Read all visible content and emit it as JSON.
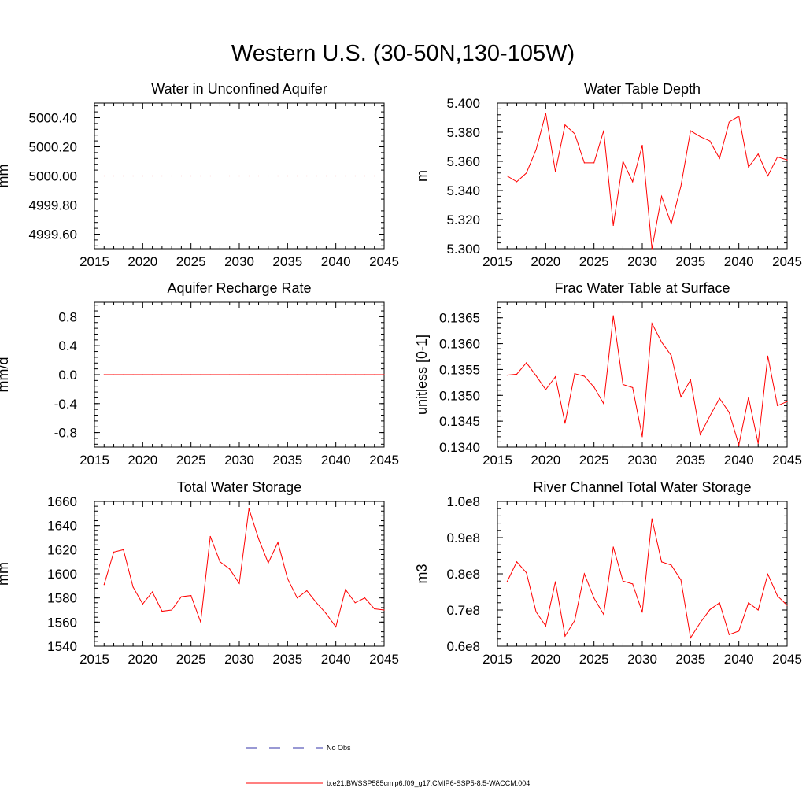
{
  "figure": {
    "title": "Western U.S. (30-50N,130-105W)"
  },
  "legend": [
    {
      "label": "No Obs",
      "color": "#3333aa",
      "style": "dashed"
    },
    {
      "label": "b.e21.BWSSP585cmip6.f09_g17.CMIP6-SSP5-8.5-WACCM.004",
      "color": "#ff0000",
      "style": "solid"
    }
  ],
  "chart_data": [
    {
      "type": "line",
      "title": "Water in Unconfined Aquifer",
      "xlabel": "",
      "ylabel": "mm",
      "xlim": [
        2015,
        2045
      ],
      "ylim": [
        4999.5,
        5000.5
      ],
      "xticks": [
        "2015",
        "2020",
        "2025",
        "2030",
        "2035",
        "2040",
        "2045"
      ],
      "yticks": [
        "4999.60",
        "4999.80",
        "5000.00",
        "5000.20",
        "5000.40"
      ],
      "ytick_values": [
        4999.6,
        4999.8,
        5000.0,
        5000.2,
        5000.4
      ],
      "series": [
        {
          "color": "#ff0000",
          "x": [
            2016,
            2017,
            2018,
            2019,
            2020,
            2021,
            2022,
            2023,
            2024,
            2025,
            2026,
            2027,
            2028,
            2029,
            2030,
            2031,
            2032,
            2033,
            2034,
            2035,
            2036,
            2037,
            2038,
            2039,
            2040,
            2041,
            2042,
            2043,
            2044,
            2045
          ],
          "y": [
            5000,
            5000,
            5000,
            5000,
            5000,
            5000,
            5000,
            5000,
            5000,
            5000,
            5000,
            5000,
            5000,
            5000,
            5000,
            5000,
            5000,
            5000,
            5000,
            5000,
            5000,
            5000,
            5000,
            5000,
            5000,
            5000,
            5000,
            5000,
            5000,
            5000
          ]
        }
      ]
    },
    {
      "type": "line",
      "title": "Water Table Depth",
      "xlabel": "",
      "ylabel": "m",
      "xlim": [
        2015,
        2045
      ],
      "ylim": [
        5.3,
        5.4
      ],
      "xticks": [
        "2015",
        "2020",
        "2025",
        "2030",
        "2035",
        "2040",
        "2045"
      ],
      "yticks": [
        "5.300",
        "5.320",
        "5.340",
        "5.360",
        "5.380",
        "5.400"
      ],
      "ytick_values": [
        5.3,
        5.32,
        5.34,
        5.36,
        5.38,
        5.4
      ],
      "series": [
        {
          "color": "#ff0000",
          "x": [
            2016,
            2017,
            2018,
            2019,
            2020,
            2021,
            2022,
            2023,
            2024,
            2025,
            2026,
            2027,
            2028,
            2029,
            2030,
            2031,
            2032,
            2033,
            2034,
            2035,
            2036,
            2037,
            2038,
            2039,
            2040,
            2041,
            2042,
            2043,
            2044,
            2045
          ],
          "y": [
            5.35,
            5.346,
            5.352,
            5.368,
            5.393,
            5.353,
            5.385,
            5.379,
            5.359,
            5.359,
            5.381,
            5.316,
            5.36,
            5.346,
            5.371,
            5.3,
            5.336,
            5.317,
            5.343,
            5.381,
            5.377,
            5.374,
            5.362,
            5.387,
            5.391,
            5.356,
            5.365,
            5.35,
            5.363,
            5.361
          ]
        }
      ]
    },
    {
      "type": "line",
      "title": "Aquifer Recharge Rate",
      "xlabel": "",
      "ylabel": "mm/d",
      "xlim": [
        2015,
        2045
      ],
      "ylim": [
        -1.0,
        1.0
      ],
      "xticks": [
        "2015",
        "2020",
        "2025",
        "2030",
        "2035",
        "2040",
        "2045"
      ],
      "yticks": [
        "-0.8",
        "-0.4",
        "0.0",
        "0.4",
        "0.8"
      ],
      "ytick_values": [
        -0.8,
        -0.4,
        0.0,
        0.4,
        0.8
      ],
      "series": [
        {
          "color": "#ff0000",
          "x": [
            2016,
            2017,
            2018,
            2019,
            2020,
            2021,
            2022,
            2023,
            2024,
            2025,
            2026,
            2027,
            2028,
            2029,
            2030,
            2031,
            2032,
            2033,
            2034,
            2035,
            2036,
            2037,
            2038,
            2039,
            2040,
            2041,
            2042,
            2043,
            2044,
            2045
          ],
          "y": [
            0,
            0,
            0,
            0,
            0,
            0,
            0,
            0,
            0,
            0,
            0,
            0,
            0,
            0,
            0,
            0,
            0,
            0,
            0,
            0,
            0,
            0,
            0,
            0,
            0,
            0,
            0,
            0,
            0,
            0
          ]
        }
      ]
    },
    {
      "type": "line",
      "title": "Frac Water Table at Surface",
      "xlabel": "",
      "ylabel": "unitless [0-1]",
      "xlim": [
        2015,
        2045
      ],
      "ylim": [
        0.134,
        0.1368
      ],
      "xticks": [
        "2015",
        "2020",
        "2025",
        "2030",
        "2035",
        "2040",
        "2045"
      ],
      "yticks": [
        "0.1340",
        "0.1345",
        "0.1350",
        "0.1355",
        "0.1360",
        "0.1365"
      ],
      "ytick_values": [
        0.134,
        0.1345,
        0.135,
        0.1355,
        0.136,
        0.1365
      ],
      "series": [
        {
          "color": "#ff0000",
          "x": [
            2016,
            2017,
            2018,
            2019,
            2020,
            2021,
            2022,
            2023,
            2024,
            2025,
            2026,
            2027,
            2028,
            2029,
            2030,
            2031,
            2032,
            2033,
            2034,
            2035,
            2036,
            2037,
            2038,
            2039,
            2040,
            2041,
            2042,
            2043,
            2044,
            2045
          ],
          "y": [
            0.13539,
            0.13541,
            0.13563,
            0.13538,
            0.13511,
            0.13536,
            0.13446,
            0.13542,
            0.13537,
            0.13516,
            0.13484,
            0.13654,
            0.13521,
            0.13515,
            0.1342,
            0.13639,
            0.13603,
            0.13577,
            0.13497,
            0.1353,
            0.13424,
            0.1346,
            0.13494,
            0.13467,
            0.13404,
            0.13496,
            0.13407,
            0.13576,
            0.1348,
            0.13488
          ]
        }
      ]
    },
    {
      "type": "line",
      "title": "Total Water Storage",
      "xlabel": "",
      "ylabel": "mm",
      "xlim": [
        2015,
        2045
      ],
      "ylim": [
        1540,
        1660
      ],
      "xticks": [
        "2015",
        "2020",
        "2025",
        "2030",
        "2035",
        "2040",
        "2045"
      ],
      "yticks": [
        "1540",
        "1560",
        "1580",
        "1600",
        "1620",
        "1640",
        "1660"
      ],
      "ytick_values": [
        1540,
        1560,
        1580,
        1600,
        1620,
        1640,
        1660
      ],
      "series": [
        {
          "color": "#ff0000",
          "x": [
            2016,
            2017,
            2018,
            2019,
            2020,
            2021,
            2022,
            2023,
            2024,
            2025,
            2026,
            2027,
            2028,
            2029,
            2030,
            2031,
            2032,
            2033,
            2034,
            2035,
            2036,
            2037,
            2038,
            2039,
            2040,
            2041,
            2042,
            2043,
            2044,
            2045
          ],
          "y": [
            1591,
            1618,
            1620,
            1589,
            1575,
            1585,
            1569,
            1570,
            1581,
            1582,
            1560,
            1631,
            1610,
            1604,
            1592,
            1654,
            1629,
            1609,
            1626,
            1596,
            1580,
            1586,
            1576,
            1567,
            1556,
            1587,
            1576,
            1580,
            1571,
            1570
          ]
        }
      ]
    },
    {
      "type": "line",
      "title": "River Channel Total Water Storage",
      "xlabel": "",
      "ylabel": "m3",
      "xlim": [
        2015,
        2045
      ],
      "ylim": [
        60000000.0,
        100000000.0
      ],
      "xticks": [
        "2015",
        "2020",
        "2025",
        "2030",
        "2035",
        "2040",
        "2045"
      ],
      "yticks": [
        "0.6e8",
        "0.7e8",
        "0.8e8",
        "0.9e8",
        "1.0e8"
      ],
      "ytick_values": [
        60000000,
        70000000,
        80000000,
        90000000,
        100000000
      ],
      "series": [
        {
          "color": "#ff0000",
          "x": [
            2016,
            2017,
            2018,
            2019,
            2020,
            2021,
            2022,
            2023,
            2024,
            2025,
            2026,
            2027,
            2028,
            2029,
            2030,
            2031,
            2032,
            2033,
            2034,
            2035,
            2036,
            2037,
            2038,
            2039,
            2040,
            2041,
            2042,
            2043,
            2044,
            2045
          ],
          "y": [
            77800000,
            83300000,
            80300000,
            69500000,
            65600000,
            77800000,
            62800000,
            67100000,
            80000000,
            73300000,
            68800000,
            87400000,
            78000000,
            77200000,
            69400000,
            95200000,
            83300000,
            82400000,
            78300000,
            62300000,
            66500000,
            70100000,
            72000000,
            63200000,
            64200000,
            72000000,
            70000000,
            79900000,
            73900000,
            71300000
          ]
        }
      ]
    }
  ]
}
